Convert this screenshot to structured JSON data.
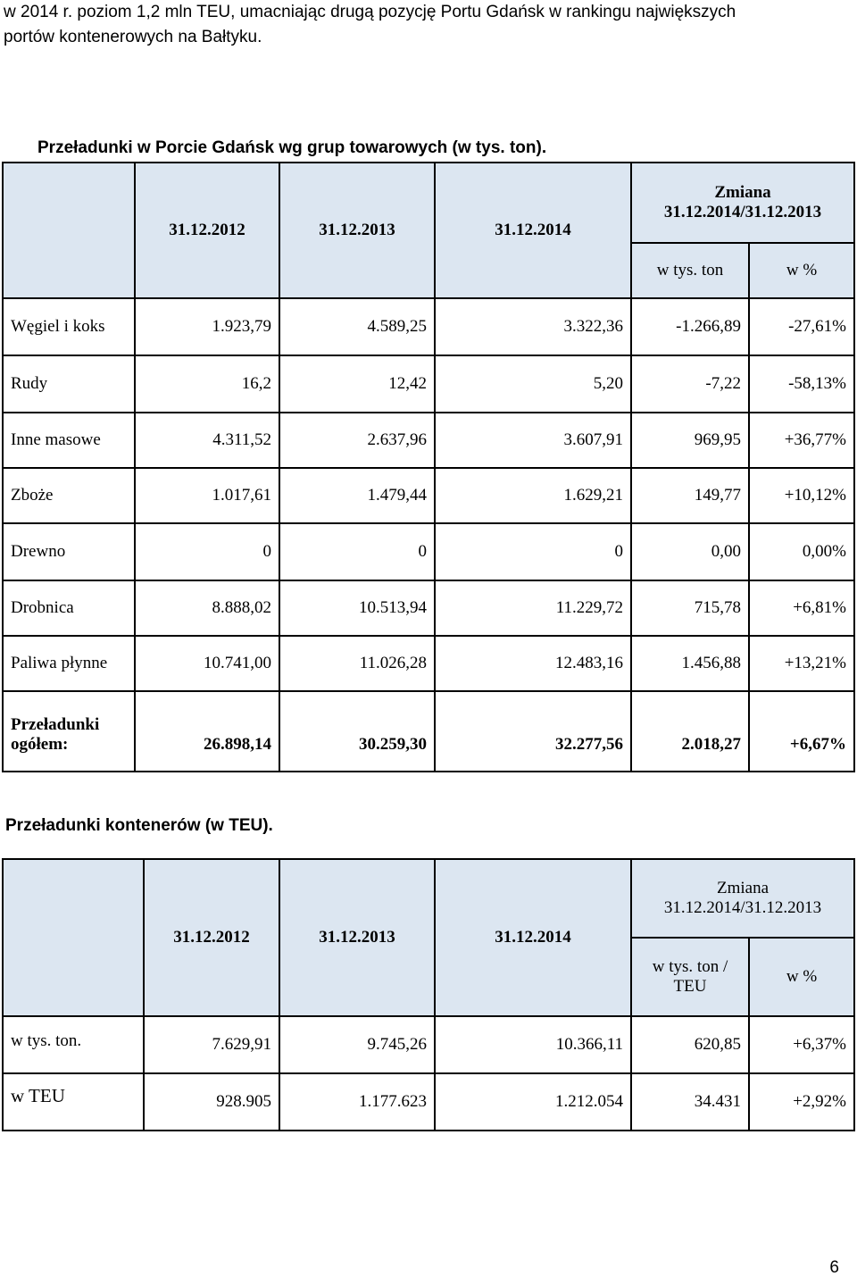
{
  "intro": {
    "line1": "w 2014 r. poziom 1,2 mln TEU, umacniając drugą pozycję Portu Gdańsk w rankingu największych",
    "line2": "portów kontenerowych na Bałtyku."
  },
  "table1": {
    "title": "Przeładunki w Porcie Gdańsk wg grup towarowych (w tys. ton).",
    "headers": {
      "d2012": "31.12.2012",
      "d2013": "31.12.2013",
      "d2014": "31.12.2014",
      "change_title": "Zmiana",
      "change_period": "31.12.2014/31.12.2013",
      "unit_abs": "w tys. ton",
      "unit_pct": "w %"
    },
    "rows": [
      {
        "label": "Węgiel i koks",
        "v2012": "1.923,79",
        "v2013": "4.589,25",
        "v2014": "3.322,36",
        "abs": "-1.266,89",
        "pct": "-27,61%"
      },
      {
        "label": "Rudy",
        "v2012": "16,2",
        "v2013": "12,42",
        "v2014": "5,20",
        "abs": "-7,22",
        "pct": "-58,13%"
      },
      {
        "label": "Inne masowe",
        "v2012": "4.311,52",
        "v2013": "2.637,96",
        "v2014": "3.607,91",
        "abs": "969,95",
        "pct": "+36,77%"
      },
      {
        "label": "Zboże",
        "v2012": "1.017,61",
        "v2013": "1.479,44",
        "v2014": "1.629,21",
        "abs": "149,77",
        "pct": "+10,12%"
      },
      {
        "label": "Drewno",
        "v2012": "0",
        "v2013": "0",
        "v2014": "0",
        "abs": "0,00",
        "pct": "0,00%"
      },
      {
        "label": "Drobnica",
        "v2012": "8.888,02",
        "v2013": "10.513,94",
        "v2014": "11.229,72",
        "abs": "715,78",
        "pct": "+6,81%"
      },
      {
        "label": "Paliwa płynne",
        "v2012": "10.741,00",
        "v2013": "11.026,28",
        "v2014": "12.483,16",
        "abs": "1.456,88",
        "pct": "+13,21%"
      }
    ],
    "total": {
      "label_line1": "Przeładunki",
      "label_line2": "ogółem:",
      "v2012": "26.898,14",
      "v2013": "30.259,30",
      "v2014": "32.277,56",
      "abs": "2.018,27",
      "pct": "+6,67%"
    }
  },
  "table2": {
    "title": "Przeładunki kontenerów (w TEU).",
    "headers": {
      "d2012": "31.12.2012",
      "d2013": "31.12.2013",
      "d2014": "31.12.2014",
      "change_title": "Zmiana",
      "change_period": "31.12.2014/31.12.2013",
      "unit_abs_line1": "w tys. ton /",
      "unit_abs_line2": "TEU",
      "unit_pct": "w %"
    },
    "rows": [
      {
        "label": "w tys. ton.",
        "v2012": "7.629,91",
        "v2013": "9.745,26",
        "v2014": "10.366,11",
        "abs": "620,85",
        "pct": "+6,37%"
      },
      {
        "label": "w TEU",
        "v2012": "928.905",
        "v2013": "1.177.623",
        "v2014": "1.212.054",
        "abs": "34.431",
        "pct": "+2,92%"
      }
    ]
  },
  "page_number": "6"
}
